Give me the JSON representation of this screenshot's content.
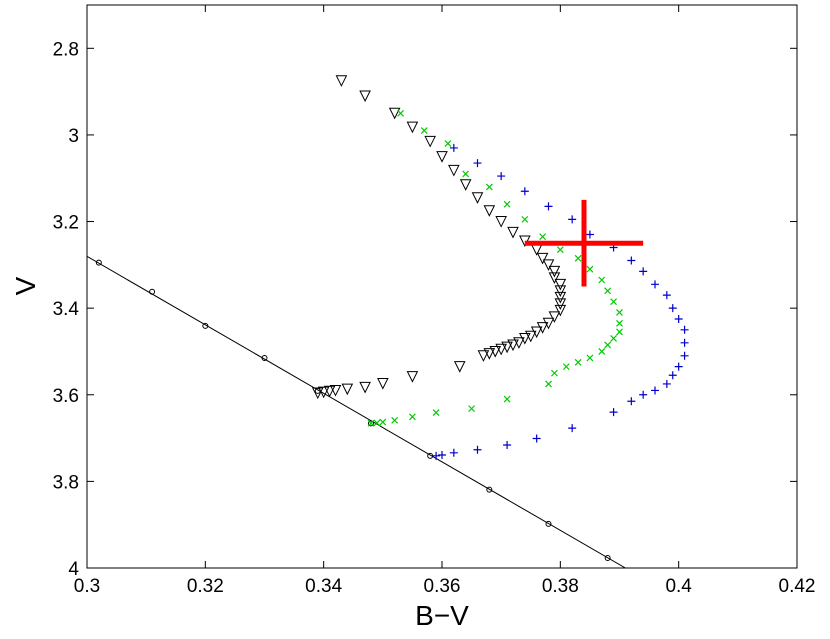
{
  "chart_data": {
    "type": "scatter",
    "title": "",
    "xlabel": "B−V",
    "ylabel": "V",
    "xlim": [
      0.3,
      0.42
    ],
    "ylim": [
      4.0,
      2.7
    ],
    "y_inverted": true,
    "grid": false,
    "legend": "none",
    "x_ticks": [
      0.3,
      0.32,
      0.34,
      0.36,
      0.38,
      0.4,
      0.42
    ],
    "x_tick_labels": [
      "0.3",
      "0.32",
      "0.34",
      "0.36",
      "0.38",
      "0.4",
      "0.42"
    ],
    "y_ticks": [
      2.8,
      3.0,
      3.2,
      3.4,
      3.6,
      3.8,
      4.0
    ],
    "y_tick_labels": [
      "2.8",
      "3",
      "3.2",
      "3.4",
      "3.6",
      "3.8",
      "4"
    ],
    "series": [
      {
        "marker": "circle-line",
        "color": "#000000",
        "x": [
          0.302,
          0.311,
          0.32,
          0.33,
          0.339,
          0.348,
          0.358,
          0.368,
          0.378,
          0.388
        ],
        "y": [
          3.295,
          3.362,
          3.441,
          3.515,
          3.591,
          3.666,
          3.741,
          3.819,
          3.898,
          3.977
        ],
        "line_start": [
          0.293,
          3.225
        ],
        "line_end": [
          0.391,
          4.0
        ]
      },
      {
        "marker": "triangle-down",
        "color": "#000000",
        "x": [
          0.343,
          0.347,
          0.352,
          0.355,
          0.358,
          0.36,
          0.362,
          0.364,
          0.366,
          0.368,
          0.37,
          0.372,
          0.374,
          0.376,
          0.377,
          0.378,
          0.379,
          0.379,
          0.38,
          0.38,
          0.38,
          0.38,
          0.38,
          0.379,
          0.378,
          0.377,
          0.376,
          0.375,
          0.374,
          0.373,
          0.372,
          0.371,
          0.37,
          0.369,
          0.368,
          0.367,
          0.363,
          0.355,
          0.35,
          0.347,
          0.344,
          0.342,
          0.341,
          0.34,
          0.339
        ],
        "y": [
          2.875,
          2.91,
          2.95,
          2.982,
          3.015,
          3.05,
          3.082,
          3.115,
          3.145,
          3.175,
          3.2,
          3.225,
          3.245,
          3.265,
          3.285,
          3.3,
          3.315,
          3.33,
          3.345,
          3.36,
          3.375,
          3.39,
          3.405,
          3.42,
          3.435,
          3.445,
          3.455,
          3.465,
          3.47,
          3.48,
          3.485,
          3.49,
          3.495,
          3.5,
          3.505,
          3.51,
          3.535,
          3.558,
          3.574,
          3.583,
          3.587,
          3.59,
          3.592,
          3.594,
          3.596
        ]
      },
      {
        "marker": "x",
        "color": "#00cc00",
        "x": [
          0.353,
          0.357,
          0.361,
          0.364,
          0.368,
          0.371,
          0.374,
          0.377,
          0.38,
          0.383,
          0.385,
          0.387,
          0.388,
          0.389,
          0.39,
          0.39,
          0.39,
          0.389,
          0.388,
          0.387,
          0.385,
          0.383,
          0.381,
          0.379,
          0.378,
          0.371,
          0.365,
          0.359,
          0.355,
          0.352,
          0.35,
          0.349,
          0.348
        ],
        "y": [
          2.95,
          2.99,
          3.02,
          3.09,
          3.12,
          3.16,
          3.195,
          3.235,
          3.265,
          3.285,
          3.31,
          3.335,
          3.36,
          3.385,
          3.41,
          3.435,
          3.455,
          3.47,
          3.485,
          3.5,
          3.515,
          3.525,
          3.535,
          3.55,
          3.575,
          3.61,
          3.632,
          3.641,
          3.651,
          3.659,
          3.663,
          3.665,
          3.666
        ]
      },
      {
        "marker": "plus",
        "color": "#0000cc",
        "x": [
          0.362,
          0.366,
          0.37,
          0.374,
          0.378,
          0.382,
          0.385,
          0.389,
          0.392,
          0.394,
          0.396,
          0.398,
          0.399,
          0.4,
          0.401,
          0.401,
          0.401,
          0.4,
          0.399,
          0.398,
          0.396,
          0.394,
          0.392,
          0.389,
          0.382,
          0.376,
          0.371,
          0.366,
          0.362,
          0.36,
          0.359
        ],
        "y": [
          3.03,
          3.065,
          3.095,
          3.13,
          3.165,
          3.195,
          3.23,
          3.26,
          3.29,
          3.315,
          3.345,
          3.37,
          3.4,
          3.425,
          3.45,
          3.48,
          3.51,
          3.535,
          3.555,
          3.575,
          3.59,
          3.6,
          3.615,
          3.64,
          3.677,
          3.701,
          3.716,
          3.727,
          3.734,
          3.739,
          3.741
        ]
      }
    ],
    "annotations": [
      {
        "type": "cross",
        "color": "#ff0000",
        "x": 0.384,
        "y": 3.25,
        "x_err": 0.01,
        "y_err": 0.1
      }
    ]
  }
}
